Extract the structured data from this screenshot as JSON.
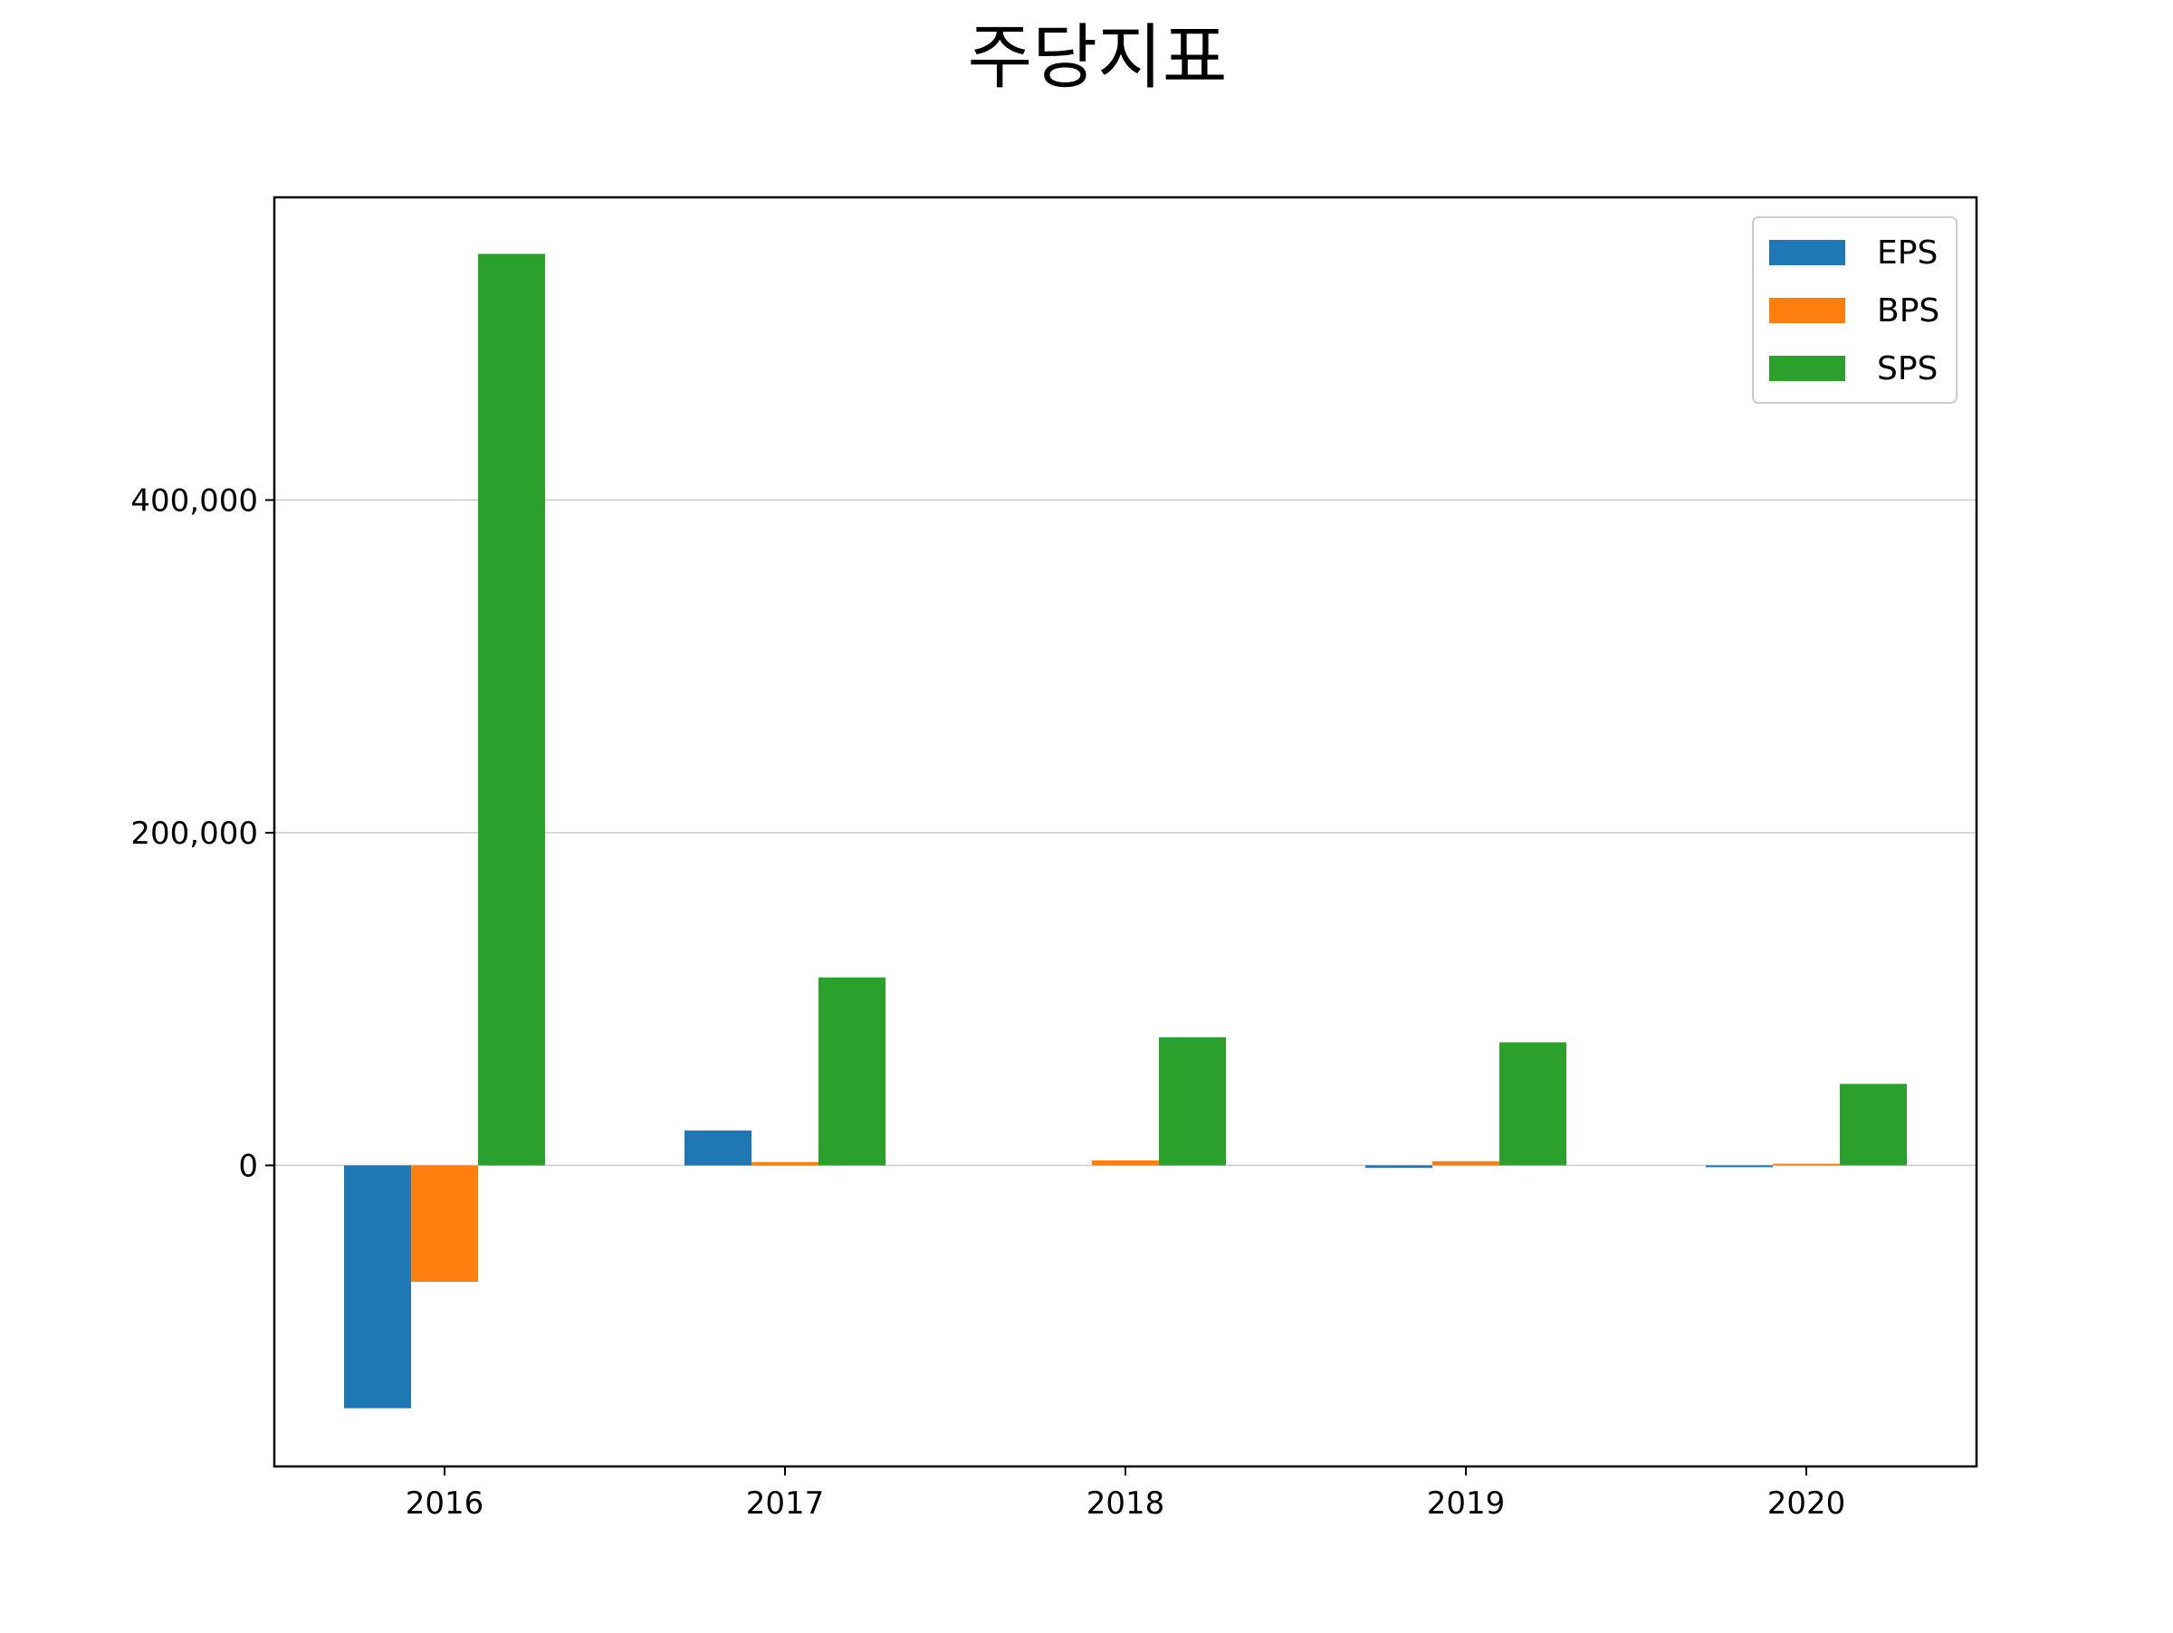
{
  "chart_data": {
    "type": "bar",
    "title": "주당지표",
    "xlabel": "",
    "ylabel": "",
    "categories": [
      "2016",
      "2017",
      "2018",
      "2019",
      "2020"
    ],
    "series": [
      {
        "name": "EPS",
        "color": "#1f77b4",
        "values": [
          -146000,
          21000,
          0,
          -1500,
          -1000
        ]
      },
      {
        "name": "BPS",
        "color": "#ff7f0e",
        "values": [
          -70000,
          2000,
          3000,
          2500,
          1000
        ]
      },
      {
        "name": "SPS",
        "color": "#2ca02c",
        "values": [
          548000,
          113000,
          77000,
          74000,
          49000
        ]
      }
    ],
    "ylim": [
      -181000,
      582000
    ],
    "yticks": [
      0,
      200000,
      400000
    ],
    "ytick_labels": [
      "0",
      "200,000",
      "400,000"
    ],
    "grid": "y",
    "legend_position": "top-right"
  }
}
